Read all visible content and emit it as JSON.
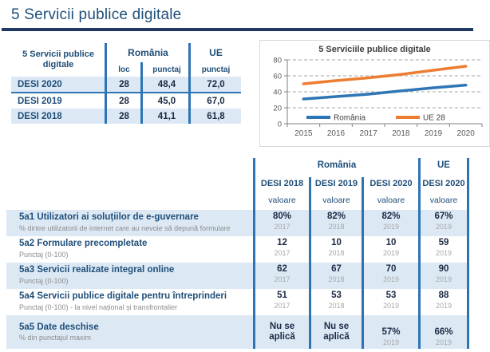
{
  "page": {
    "title": "5 Servicii publice digitale",
    "accent_color": "#1f4e79",
    "rule_color": "#1f3864",
    "divider_color": "#2e74b5",
    "band_color": "#dce9f5"
  },
  "summary_table": {
    "corner_label": "5 Servicii publice digitale",
    "group_romania": "România",
    "group_ue": "UE",
    "col_loc": "loc",
    "col_punctaj_romania": "punctaj",
    "col_punctaj_ue": "punctaj",
    "rows": [
      {
        "label": "DESI 2020",
        "loc": "28",
        "punctaj": "48,4",
        "ue": "72,0"
      },
      {
        "label": "DESI 2019",
        "loc": "28",
        "punctaj": "45,0",
        "ue": "67,0"
      },
      {
        "label": "DESI 2018",
        "loc": "28",
        "punctaj": "41,1",
        "ue": "61,8"
      }
    ]
  },
  "chart_data": {
    "type": "line",
    "title": "5 Serviciile publice digitale",
    "x": [
      "2015",
      "2016",
      "2017",
      "2018",
      "2019",
      "2020"
    ],
    "series": [
      {
        "name": "România",
        "color": "#2e75b6",
        "values": [
          31,
          34,
          37,
          41.1,
          45,
          48.4
        ]
      },
      {
        "name": "UE 28",
        "color": "#ed7d31",
        "values": [
          50,
          54,
          57.5,
          61.8,
          67,
          72
        ]
      }
    ],
    "ylim": [
      0,
      80
    ],
    "yticks": [
      0,
      20,
      40,
      60,
      80
    ],
    "grid": "dashed-horizontal",
    "legend_position": "bottom-inside"
  },
  "detail_table": {
    "group_romania": "România",
    "group_ue": "UE",
    "columns": [
      {
        "edition": "DESI 2018",
        "sub": "valoare"
      },
      {
        "edition": "DESI 2019",
        "sub": "valoare"
      },
      {
        "edition": "DESI 2020",
        "sub": "valoare"
      },
      {
        "edition": "DESI 2020",
        "sub": "valoare"
      }
    ],
    "rows": [
      {
        "code_title": "5a1 Utilizatori ai soluțiilor de e-guvernare",
        "subtitle": "% dintre utilizatorii de internet care au nevoie să depună formulare",
        "values": [
          "80%",
          "82%",
          "82%",
          "67%"
        ],
        "years": [
          "2017",
          "2018",
          "2019",
          "2019"
        ]
      },
      {
        "code_title": "5a2 Formulare precompletate",
        "subtitle": "Punctaj (0-100)",
        "values": [
          "12",
          "10",
          "10",
          "59"
        ],
        "years": [
          "2017",
          "2018",
          "2019",
          "2019"
        ]
      },
      {
        "code_title": "5a3 Servicii realizate integral online",
        "subtitle": "Punctaj (0-100)",
        "values": [
          "62",
          "67",
          "70",
          "90"
        ],
        "years": [
          "2017",
          "2018",
          "2019",
          "2019"
        ]
      },
      {
        "code_title": "5a4 Servicii publice digitale pentru întreprinderi",
        "subtitle": "Punctaj (0-100) - la nivel național și transfrontalier",
        "values": [
          "51",
          "53",
          "53",
          "88"
        ],
        "years": [
          "2017",
          "2018",
          "2019",
          "2019"
        ]
      },
      {
        "code_title": "5a5 Date deschise",
        "subtitle": "% din punctajul maxim",
        "values": [
          "Nu se aplică",
          "Nu se aplică",
          "57%",
          "66%"
        ],
        "years": [
          "",
          "",
          "2019",
          "2019"
        ]
      }
    ]
  }
}
